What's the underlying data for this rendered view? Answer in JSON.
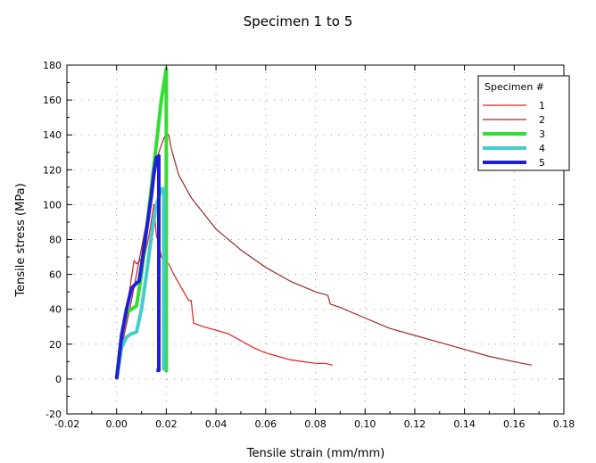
{
  "chart_data": {
    "type": "line",
    "title": "Specimen 1 to 5",
    "xlabel": "Tensile strain (mm/mm)",
    "ylabel": "Tensile stress (MPa)",
    "xlim": [
      -0.02,
      0.18
    ],
    "ylim": [
      -20,
      180
    ],
    "x_ticks": [
      "-0.02",
      "0.00",
      "0.02",
      "0.04",
      "0.06",
      "0.08",
      "0.10",
      "0.12",
      "0.14",
      "0.16",
      "0.18"
    ],
    "y_ticks": [
      "-20",
      "0",
      "20",
      "40",
      "60",
      "80",
      "100",
      "120",
      "140",
      "160",
      "180"
    ],
    "grid": true,
    "legend": {
      "title": "Specimen #",
      "placement": "top-right"
    },
    "series": [
      {
        "name": "1",
        "color": "#e02020",
        "width": 1.2,
        "x": [
          0.0,
          0.002,
          0.004,
          0.006,
          0.007,
          0.008,
          0.01,
          0.011,
          0.013,
          0.015,
          0.016,
          0.017,
          0.018,
          0.019,
          0.021,
          0.023,
          0.025,
          0.027,
          0.029,
          0.03,
          0.031,
          0.035,
          0.04,
          0.045,
          0.05,
          0.055,
          0.06,
          0.065,
          0.07,
          0.075,
          0.08,
          0.084,
          0.087
        ],
        "y": [
          0,
          20,
          40,
          58,
          68,
          66,
          69,
          68,
          82,
          100,
          82,
          78,
          70,
          68,
          66,
          60,
          55,
          50,
          45,
          45,
          32,
          30,
          28,
          26,
          22,
          18,
          15,
          13,
          11,
          10,
          9,
          9,
          8
        ]
      },
      {
        "name": "2",
        "color": "#a02828",
        "width": 1.2,
        "x": [
          0.0,
          0.003,
          0.006,
          0.01,
          0.014,
          0.017,
          0.019,
          0.02,
          0.021,
          0.022,
          0.025,
          0.03,
          0.04,
          0.05,
          0.06,
          0.07,
          0.08,
          0.085,
          0.086,
          0.09,
          0.1,
          0.11,
          0.12,
          0.13,
          0.14,
          0.15,
          0.16,
          0.167
        ],
        "y": [
          0,
          25,
          45,
          75,
          105,
          130,
          138,
          141,
          140,
          132,
          117,
          104,
          86,
          74,
          64,
          56,
          50,
          48,
          43,
          41,
          35,
          29,
          25,
          21,
          17,
          13,
          10,
          8
        ]
      },
      {
        "name": "3",
        "color": "#33dd33",
        "width": 4,
        "x": [
          0.0,
          0.002,
          0.004,
          0.006,
          0.008,
          0.01,
          0.012,
          0.014,
          0.016,
          0.018,
          0.02,
          0.02,
          0.02
        ],
        "y": [
          0,
          25,
          38,
          40,
          42,
          60,
          85,
          110,
          135,
          160,
          178,
          178,
          4
        ]
      },
      {
        "name": "4",
        "color": "#44cccc",
        "width": 4,
        "x": [
          0.0,
          0.002,
          0.004,
          0.005,
          0.006,
          0.008,
          0.01,
          0.012,
          0.014,
          0.016,
          0.018,
          0.019,
          0.019
        ],
        "y": [
          0,
          18,
          24,
          25,
          26,
          27,
          40,
          60,
          82,
          100,
          109,
          109,
          5
        ]
      },
      {
        "name": "5",
        "color": "#1f1fd8",
        "width": 4,
        "x": [
          0.0,
          0.002,
          0.004,
          0.006,
          0.008,
          0.009,
          0.01,
          0.012,
          0.014,
          0.015,
          0.016,
          0.017,
          0.017,
          0.016
        ],
        "y": [
          0,
          25,
          40,
          52,
          55,
          56,
          65,
          85,
          105,
          118,
          127,
          128,
          5,
          5
        ]
      }
    ]
  }
}
